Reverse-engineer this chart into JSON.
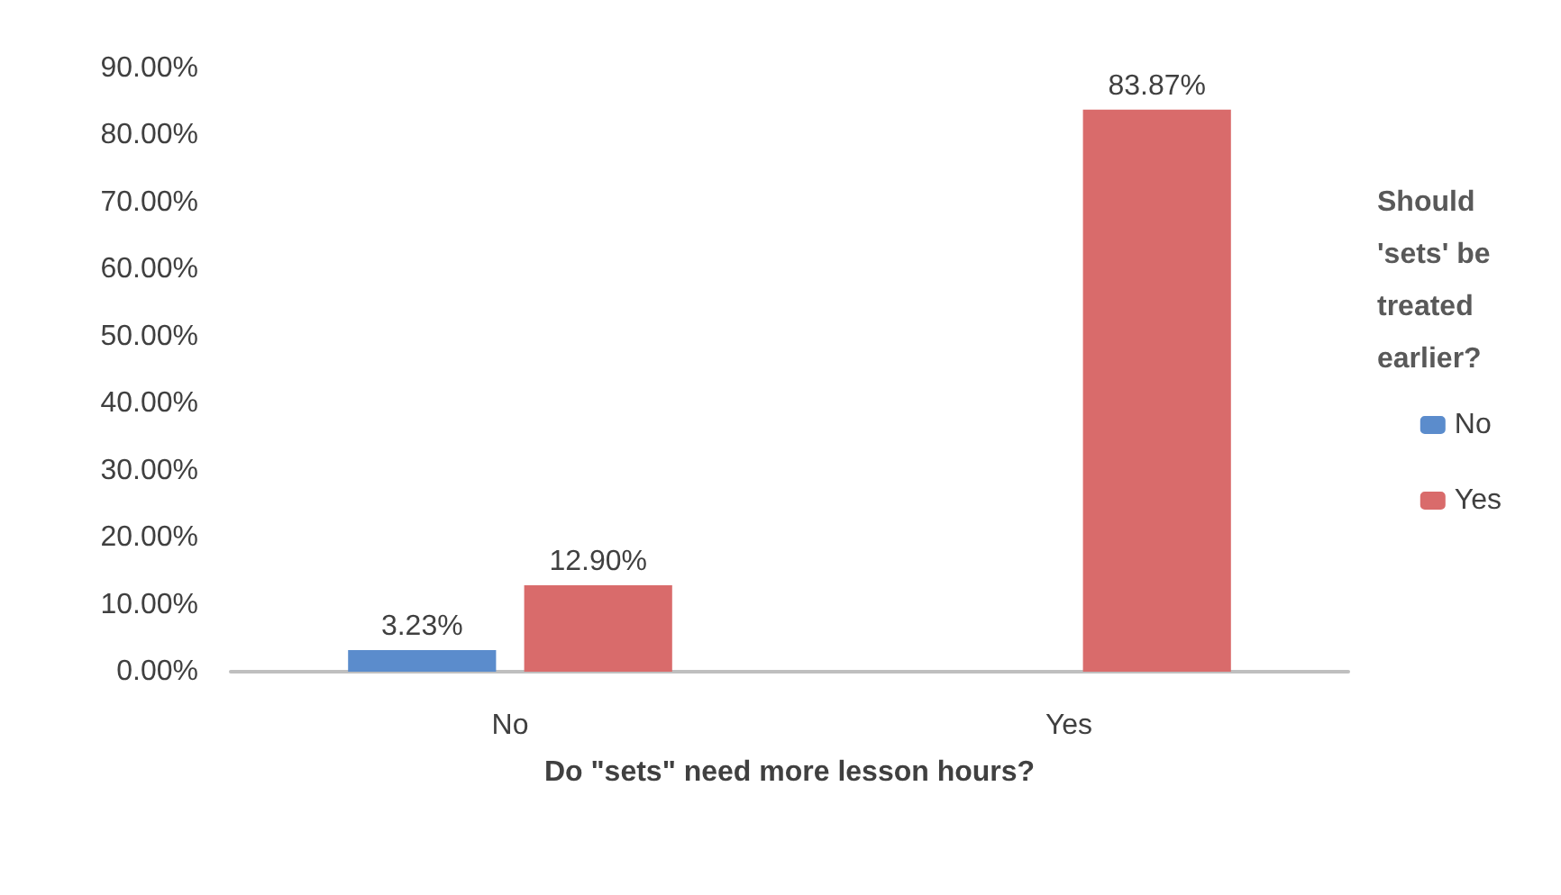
{
  "chart_data": {
    "type": "bar",
    "xlabel": "Do \"sets\" need more lesson hours?",
    "legend_title": "Should 'sets' be treated earlier?",
    "categories": [
      "No",
      "Yes"
    ],
    "series": [
      {
        "name": "No",
        "color": "#5b8ccc",
        "values": [
          3.23,
          null
        ],
        "value_labels": [
          "3.23%",
          null
        ]
      },
      {
        "name": "Yes",
        "color": "#d96b6b",
        "values": [
          12.9,
          83.87
        ],
        "value_labels": [
          "12.90%",
          "83.87%"
        ]
      }
    ],
    "ylim": [
      0,
      90
    ],
    "yticks": [
      {
        "value": 0,
        "label": "0.00%"
      },
      {
        "value": 10,
        "label": "10.00%"
      },
      {
        "value": 20,
        "label": "20.00%"
      },
      {
        "value": 30,
        "label": "30.00%"
      },
      {
        "value": 40,
        "label": "40.00%"
      },
      {
        "value": 50,
        "label": "50.00%"
      },
      {
        "value": 60,
        "label": "60.00%"
      },
      {
        "value": 70,
        "label": "70.00%"
      },
      {
        "value": 80,
        "label": "80.00%"
      },
      {
        "value": 90,
        "label": "90.00%"
      }
    ],
    "grid": false,
    "legend": "right"
  }
}
